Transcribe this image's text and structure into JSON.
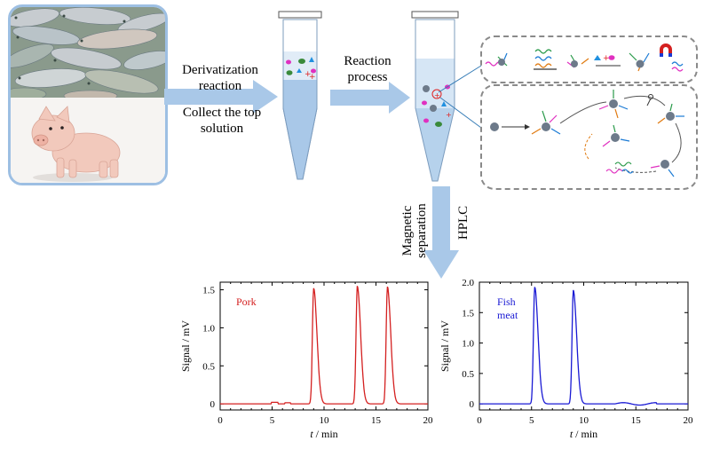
{
  "steps": {
    "derivatization": "Derivatization\nreaction",
    "collect": "Collect the top\nsolution",
    "reaction": "Reaction\nprocess",
    "magnetic": "Magnetic\nseparation",
    "hplc": "HPLC"
  },
  "chart_data": [
    {
      "type": "line",
      "label_text": "Pork",
      "color": "#d42020",
      "xlabel": "t / min",
      "ylabel": "Signal / mV",
      "xlim": [
        0,
        20
      ],
      "ylim": [
        -0.08,
        1.6
      ],
      "xticks": [
        0,
        5,
        10,
        15,
        20
      ],
      "yticks": [
        0,
        0.5,
        1.0,
        1.5
      ],
      "ytick_labels": [
        "0",
        "0.5",
        "1.0",
        "1.5"
      ],
      "peaks": [
        {
          "t": 9.0,
          "height": 1.52
        },
        {
          "t": 13.2,
          "height": 1.55
        },
        {
          "t": 16.1,
          "height": 1.54
        }
      ],
      "x": [
        0,
        5,
        5.3,
        6.5,
        8.8,
        9.0,
        9.3,
        9.7,
        10.2,
        13.0,
        13.2,
        13.5,
        13.9,
        14.4,
        15.9,
        16.1,
        16.4,
        16.8,
        17.3,
        20
      ],
      "y": [
        0,
        0,
        0.02,
        0.02,
        0.1,
        1.52,
        0.9,
        0.3,
        0.02,
        0.1,
        1.55,
        0.9,
        0.3,
        0.02,
        0.1,
        1.54,
        0.9,
        0.3,
        0.02,
        0
      ]
    },
    {
      "type": "line",
      "label_text": "Fish\nmeat",
      "color": "#1a1ad4",
      "xlabel": "t / min",
      "ylabel": "Signal / mV",
      "xlim": [
        0,
        20
      ],
      "ylim": [
        -0.1,
        2.0
      ],
      "xticks": [
        0,
        5,
        10,
        15,
        20
      ],
      "yticks": [
        0,
        0.5,
        1.0,
        1.5,
        2.0
      ],
      "ytick_labels": [
        "0",
        "0.5",
        "1.0",
        "1.5",
        "2.0"
      ],
      "peaks": [
        {
          "t": 5.3,
          "height": 1.92
        },
        {
          "t": 9.0,
          "height": 1.87
        }
      ],
      "x": [
        0,
        5.0,
        5.3,
        5.6,
        6.0,
        6.6,
        8.7,
        9.0,
        9.3,
        9.7,
        10.3,
        13,
        16,
        20
      ],
      "y": [
        0,
        0.1,
        1.92,
        1.0,
        0.4,
        0.02,
        0.1,
        1.87,
        1.0,
        0.4,
        0.02,
        0.02,
        0.03,
        0
      ]
    }
  ]
}
